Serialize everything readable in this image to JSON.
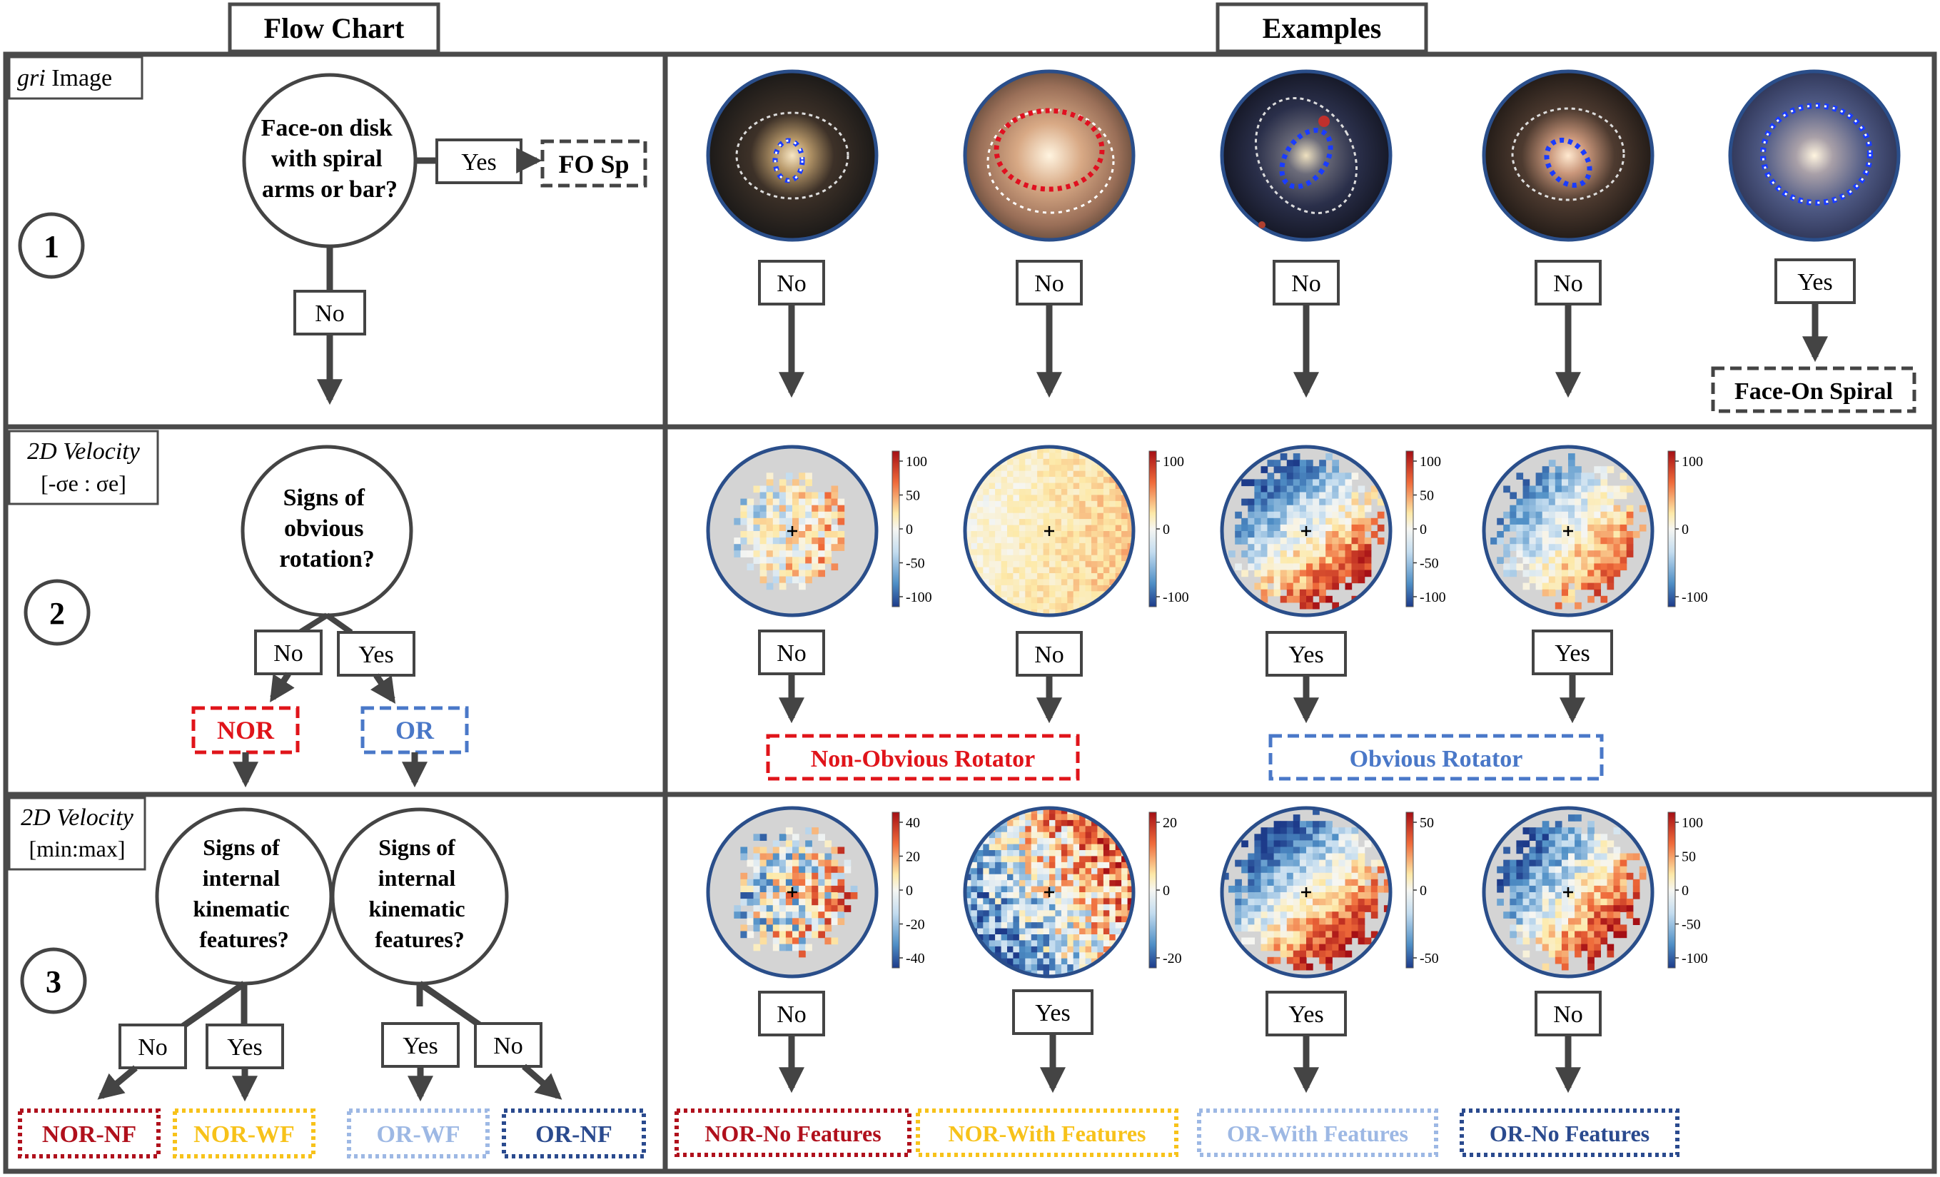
{
  "headers": {
    "flow_chart": "Flow Chart",
    "examples": "Examples"
  },
  "rows": [
    {
      "number": "1",
      "label_line1_italic": "gri",
      "label_line1_rest": " Image",
      "label_line2": "",
      "question": [
        "Face-on disk",
        "with spiral",
        "arms or bar?"
      ],
      "flow_yes": "Yes",
      "flow_no": "No",
      "flow_result": "FO Sp",
      "examples": [
        {
          "answer": "No"
        },
        {
          "answer": "No"
        },
        {
          "answer": "No"
        },
        {
          "answer": "No"
        },
        {
          "answer": "Yes"
        }
      ],
      "example_result": "Face-On Spiral"
    },
    {
      "number": "2",
      "label_line1_italic": "2D Velocity",
      "label_line2": "[-σe : σe]",
      "question": [
        "Signs of",
        "obvious",
        "rotation?"
      ],
      "flow_no": "No",
      "flow_yes": "Yes",
      "result_left": "NOR",
      "result_right": "OR",
      "examples": [
        {
          "answer": "No",
          "cbar_ticks": [
            "100",
            "50",
            "0",
            "-50",
            "-100"
          ]
        },
        {
          "answer": "No",
          "cbar_ticks": [
            "100",
            "0",
            "-100"
          ]
        },
        {
          "answer": "Yes",
          "cbar_ticks": [
            "100",
            "50",
            "0",
            "-50",
            "-100"
          ]
        },
        {
          "answer": "Yes",
          "cbar_ticks": [
            "100",
            "0",
            "-100"
          ]
        }
      ],
      "example_result_left": "Non-Obvious Rotator",
      "example_result_right": "Obvious Rotator"
    },
    {
      "number": "3",
      "label_line1_italic": "2D Velocity",
      "label_line2": "[min:max]",
      "question": [
        "Signs of",
        "internal",
        "kinematic",
        "features?"
      ],
      "left_no": "No",
      "left_yes": "Yes",
      "right_yes": "Yes",
      "right_no": "No",
      "results": [
        "NOR-NF",
        "NOR-WF",
        "OR-WF",
        "OR-NF"
      ],
      "examples": [
        {
          "answer": "No",
          "cbar_ticks": [
            "40",
            "20",
            "0",
            "-20",
            "-40"
          ]
        },
        {
          "answer": "Yes",
          "cbar_ticks": [
            "20",
            "0",
            "-20"
          ]
        },
        {
          "answer": "Yes",
          "cbar_ticks": [
            "50",
            "0",
            "-50"
          ]
        },
        {
          "answer": "No",
          "cbar_ticks": [
            "100",
            "50",
            "0",
            "-50",
            "-100"
          ]
        }
      ],
      "example_results": [
        "NOR-No Features",
        "NOR-With Features",
        "OR-With Features",
        "OR-No Features"
      ]
    }
  ],
  "colors": {
    "frame": "#4a4a4a",
    "nor": "#e0141a",
    "or": "#4a78c8",
    "nor_nf": "#b0101c",
    "nor_wf": "#f7c21a",
    "or_wf": "#9db8e4",
    "or_nf": "#2a4a8e",
    "circle_border": "#2a4e8a"
  }
}
